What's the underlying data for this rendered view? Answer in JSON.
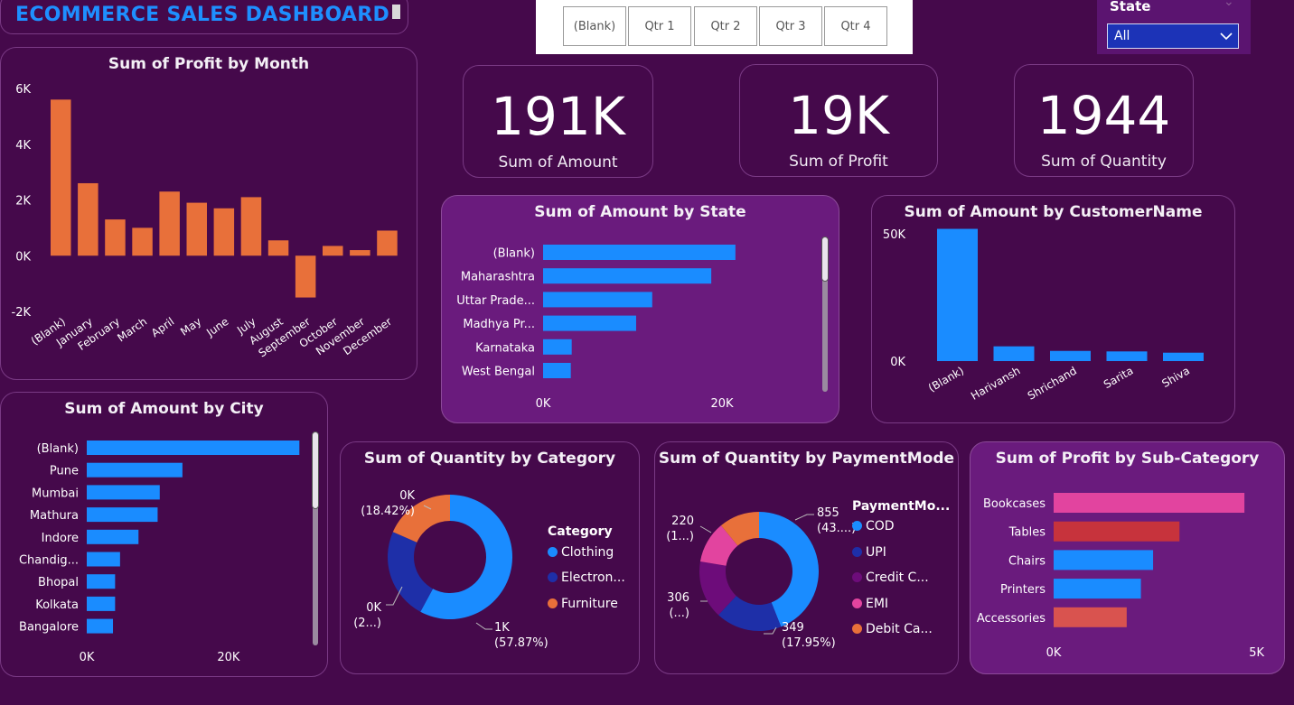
{
  "header": {
    "title": "ECOMMERCE SALES DASHBOARD"
  },
  "slicer": {
    "options": [
      "(Blank)",
      "Qtr 1",
      "Qtr 2",
      "Qtr 3",
      "Qtr 4"
    ]
  },
  "state_filter": {
    "label": "State",
    "value": "All"
  },
  "kpis": [
    {
      "value": "191K",
      "label": "Sum of Amount"
    },
    {
      "value": "19K",
      "label": "Sum of Profit"
    },
    {
      "value": "1944",
      "label": "Sum of Quantity"
    }
  ],
  "colors": {
    "orange": "#e8703a",
    "blue": "#1a8cff",
    "navy": "#1e2fa8",
    "purple": "#6d0c7a",
    "pink": "#e2449f",
    "red": "#c7333c",
    "coral": "#d9534f"
  },
  "chart_data": [
    {
      "id": "profit_by_month",
      "type": "bar",
      "title": "Sum of Profit by Month",
      "categories": [
        "(Blank)",
        "January",
        "February",
        "March",
        "April",
        "May",
        "June",
        "July",
        "August",
        "September",
        "October",
        "November",
        "December"
      ],
      "values": [
        5600,
        2600,
        1300,
        1000,
        2300,
        1900,
        1700,
        2100,
        550,
        -1500,
        350,
        200,
        900
      ],
      "ylim": [
        -2000,
        6000
      ],
      "ytick_labels": [
        "6K",
        "4K",
        "2K",
        "0K",
        "-2K"
      ],
      "ytick_values": [
        6000,
        4000,
        2000,
        0,
        -2000
      ],
      "color": "#e8703a"
    },
    {
      "id": "amount_by_state",
      "type": "bar",
      "orientation": "horizontal",
      "title": "Sum of Amount by State",
      "categories": [
        "(Blank)",
        "Maharashtra",
        "Uttar Prade...",
        "Madhya Pr...",
        "Karnataka",
        "West Bengal"
      ],
      "values": [
        21500,
        18800,
        12200,
        10400,
        3200,
        3100
      ],
      "xlim": [
        0,
        30000
      ],
      "xtick_labels": [
        "0K",
        "20K"
      ],
      "xtick_values": [
        0,
        20000
      ],
      "color": "#1a8cff"
    },
    {
      "id": "amount_by_customer",
      "type": "bar",
      "title": "Sum of Amount by CustomerName",
      "categories": [
        "(Blank)",
        "Harivansh",
        "Shrichand",
        "Sarita",
        "Shiva"
      ],
      "values": [
        52000,
        5800,
        4000,
        3800,
        3300
      ],
      "ylim": [
        0,
        60000
      ],
      "ytick_labels": [
        "50K",
        "0K"
      ],
      "ytick_values": [
        50000,
        0
      ],
      "color": "#1a8cff"
    },
    {
      "id": "amount_by_city",
      "type": "bar",
      "orientation": "horizontal",
      "title": "Sum of Amount by City",
      "categories": [
        "(Blank)",
        "Pune",
        "Mumbai",
        "Mathura",
        "Indore",
        "Chandig...",
        "Bhopal",
        "Kolkata",
        "Bangalore"
      ],
      "values": [
        30000,
        13500,
        10300,
        10000,
        7300,
        4700,
        4000,
        4000,
        3700
      ],
      "xlim": [
        0,
        32000
      ],
      "xtick_labels": [
        "0K",
        "20K"
      ],
      "xtick_values": [
        0,
        20000
      ],
      "color": "#1a8cff"
    },
    {
      "id": "quantity_by_category",
      "type": "pie",
      "title": "Sum of Quantity by Category",
      "legend_title": "Category",
      "labels": [
        "Clothing",
        "Electron...",
        "Furniture"
      ],
      "values": [
        57.87,
        23.71,
        18.42
      ],
      "colors": [
        "#1a8cff",
        "#1e2fa8",
        "#e8703a"
      ],
      "data_labels": [
        [
          "1K",
          "(57.87%)"
        ],
        [
          "0K",
          "(2...)"
        ],
        [
          "0K",
          "(18.42%)"
        ]
      ]
    },
    {
      "id": "quantity_by_paymentmode",
      "type": "pie",
      "title": "Sum of Quantity by PaymentMode",
      "legend_title": "PaymentMo...",
      "labels": [
        "COD",
        "UPI",
        "Credit C...",
        "EMI",
        "Debit Ca..."
      ],
      "values": [
        855,
        349,
        306,
        220,
        214
      ],
      "colors": [
        "#1a8cff",
        "#1e2fa8",
        "#6d0c7a",
        "#e2449f",
        "#e8703a"
      ],
      "data_labels": [
        [
          "855",
          "(43....)"
        ],
        [
          "349",
          "(17.95%)"
        ],
        [
          "306",
          "(...)"
        ],
        [
          "220",
          "(1...)"
        ],
        [
          "",
          ""
        ]
      ]
    },
    {
      "id": "profit_by_subcategory",
      "type": "bar",
      "orientation": "horizontal",
      "title": "Sum of Profit by Sub-Category",
      "categories": [
        "Bookcases",
        "Tables",
        "Chairs",
        "Printers",
        "Accessories"
      ],
      "values": [
        4700,
        3100,
        2450,
        2150,
        1800
      ],
      "xlim": [
        0,
        6500
      ],
      "xtick_labels": [
        "0K",
        "5K"
      ],
      "xtick_values": [
        0,
        5000
      ],
      "colors": [
        "#e2449f",
        "#c7333c",
        "#1a8cff",
        "#1a8cff",
        "#d9534f"
      ]
    }
  ]
}
